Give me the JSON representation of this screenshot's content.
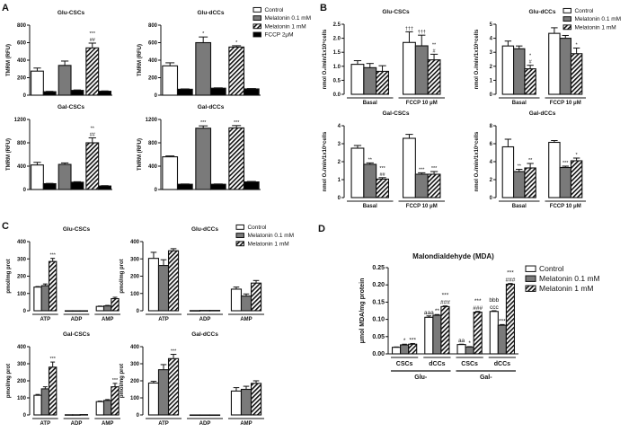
{
  "panel_labels": [
    "A",
    "B",
    "C",
    "D"
  ],
  "legends": {
    "A": [
      "Control",
      "Melatonin 0.1 mM",
      "Melatonin 1 mM",
      "FCCP 2μM"
    ],
    "B": [
      "Control",
      "Melatonin 0.1 mM",
      "Melatonin 1 mM"
    ],
    "C": [
      "Control",
      "Melatonin 0.1 mM",
      "Melatonin 1 mM"
    ],
    "D": [
      "Control",
      "Melatonin 0.1 mM",
      "Melatonin 1 mM"
    ]
  },
  "series_styles": {
    "Control": "#ffffff",
    "Melatonin 0.1 mM": "#777777",
    "Melatonin 1 mM": "hatched",
    "FCCP 2μM": "#000000"
  },
  "chart_data": [
    {
      "panel": "A",
      "type": "bar",
      "title": "Glu-CSCs",
      "ylabel": "TMRM (RFU)",
      "ylim": [
        0,
        800
      ],
      "yticks": [
        "0",
        "200",
        "400",
        "600",
        "800"
      ],
      "groups": [
        {
          "series": [
            0,
            3
          ],
          "values": [
            275,
            40
          ],
          "errors": [
            35,
            4
          ],
          "annotations": [
            [],
            []
          ]
        },
        {
          "series": [
            1,
            3
          ],
          "values": [
            340,
            55
          ],
          "errors": [
            50,
            5
          ],
          "annotations": [
            [],
            []
          ]
        },
        {
          "series": [
            2,
            3
          ],
          "values": [
            540,
            45
          ],
          "errors": [
            55,
            4
          ],
          "annotations": [
            [
              "***",
              "##"
            ],
            []
          ]
        }
      ]
    },
    {
      "panel": "A",
      "type": "bar",
      "title": "Glu-dCCs",
      "ylabel": "TMRM (RFU)",
      "ylim": [
        0,
        800
      ],
      "yticks": [
        "0",
        "200",
        "400",
        "600",
        "800"
      ],
      "groups": [
        {
          "series": [
            0,
            3
          ],
          "values": [
            335,
            68
          ],
          "errors": [
            35,
            4
          ],
          "annotations": [
            [],
            []
          ]
        },
        {
          "series": [
            1,
            3
          ],
          "values": [
            600,
            80
          ],
          "errors": [
            65,
            4
          ],
          "annotations": [
            [
              "*"
            ],
            []
          ]
        },
        {
          "series": [
            2,
            3
          ],
          "values": [
            550,
            72
          ],
          "errors": [
            15,
            4
          ],
          "annotations": [
            [
              "*"
            ],
            []
          ]
        }
      ]
    },
    {
      "panel": "A",
      "type": "bar",
      "title": "Gal-CSCs",
      "ylabel": "TMRM (RFU)",
      "ylim": [
        0,
        1200
      ],
      "yticks": [
        "0",
        "400",
        "800",
        "1200"
      ],
      "groups": [
        {
          "series": [
            0,
            3
          ],
          "values": [
            420,
            100
          ],
          "errors": [
            45,
            5
          ],
          "annotations": [
            [],
            []
          ]
        },
        {
          "series": [
            1,
            3
          ],
          "values": [
            430,
            125
          ],
          "errors": [
            25,
            8
          ],
          "annotations": [
            [],
            []
          ]
        },
        {
          "series": [
            2,
            3
          ],
          "values": [
            800,
            60
          ],
          "errors": [
            85,
            6
          ],
          "annotations": [
            [
              "**",
              "##"
            ],
            []
          ]
        }
      ]
    },
    {
      "panel": "A",
      "type": "bar",
      "title": "Gal-dCCs",
      "ylabel": "TMRM (RFU)",
      "ylim": [
        0,
        1200
      ],
      "yticks": [
        "0",
        "400",
        "800",
        "1200"
      ],
      "groups": [
        {
          "series": [
            0,
            3
          ],
          "values": [
            560,
            90
          ],
          "errors": [
            15,
            5
          ],
          "annotations": [
            [],
            []
          ]
        },
        {
          "series": [
            1,
            3
          ],
          "values": [
            1050,
            90
          ],
          "errors": [
            40,
            5
          ],
          "annotations": [
            [
              "***"
            ],
            []
          ]
        },
        {
          "series": [
            2,
            3
          ],
          "values": [
            1055,
            130
          ],
          "errors": [
            40,
            8
          ],
          "annotations": [
            [
              "***"
            ],
            []
          ]
        }
      ]
    },
    {
      "panel": "B",
      "type": "bar",
      "title": "Glu-CSCs",
      "ylabel": "nmol O₂/min/1x10⁶cells",
      "ylim": [
        0,
        2.5
      ],
      "yticks": [
        "0.0",
        "0.5",
        "1.0",
        "1.5",
        "2.0",
        "2.5"
      ],
      "groups": [
        {
          "label": "Basal",
          "values": [
            1.07,
            0.95,
            0.82
          ],
          "errors": [
            0.13,
            0.15,
            0.2
          ],
          "annotations": [
            [],
            [],
            []
          ]
        },
        {
          "label": "FCCP 10 μM",
          "values": [
            1.85,
            1.73,
            1.23
          ],
          "errors": [
            0.38,
            0.38,
            0.2
          ],
          "annotations": [
            [
              "†††"
            ],
            [
              "†††"
            ],
            [
              "**",
              "#"
            ]
          ]
        }
      ]
    },
    {
      "panel": "B",
      "type": "bar",
      "title": "Glu-dCCs",
      "ylabel": "nmol O₂/min/1x10⁶cells",
      "ylim": [
        0,
        5
      ],
      "yticks": [
        "0",
        "1",
        "2",
        "3",
        "4",
        "5"
      ],
      "groups": [
        {
          "label": "Basal",
          "values": [
            3.45,
            3.25,
            1.82
          ],
          "errors": [
            0.35,
            0.2,
            0.25
          ],
          "annotations": [
            [],
            [],
            [
              "*",
              "#"
            ]
          ]
        },
        {
          "label": "FCCP 10 μM",
          "values": [
            4.35,
            4.0,
            2.9
          ],
          "errors": [
            0.4,
            0.2,
            0.4
          ],
          "annotations": [
            [],
            [],
            [
              "*"
            ]
          ]
        }
      ]
    },
    {
      "panel": "B",
      "type": "bar",
      "title": "Gal-CSCs",
      "ylabel": "nmol O₂/min/1x10⁶cells",
      "ylim": [
        0,
        4
      ],
      "yticks": [
        "0",
        "1",
        "2",
        "3",
        "4"
      ],
      "groups": [
        {
          "label": "Basal",
          "values": [
            2.75,
            1.85,
            1.03
          ],
          "errors": [
            0.15,
            0.08,
            0.08
          ],
          "annotations": [
            [],
            [
              "**"
            ],
            [
              "***",
              "##"
            ]
          ]
        },
        {
          "label": "FCCP 10 μM",
          "values": [
            3.3,
            1.3,
            1.3
          ],
          "errors": [
            0.22,
            0.08,
            0.15
          ],
          "annotations": [
            [],
            [
              "***"
            ],
            [
              "***"
            ]
          ]
        }
      ]
    },
    {
      "panel": "B",
      "type": "bar",
      "title": "Gal-dCCs",
      "ylabel": "nmol O₂/min/1x10⁶cells",
      "ylim": [
        0,
        8
      ],
      "yticks": [
        "0",
        "2",
        "4",
        "6",
        "8"
      ],
      "groups": [
        {
          "label": "Basal",
          "values": [
            5.65,
            2.9,
            3.3
          ],
          "errors": [
            0.85,
            0.25,
            0.5
          ],
          "annotations": [
            [],
            [
              "**"
            ],
            [
              "**"
            ]
          ]
        },
        {
          "label": "FCCP 10 μM",
          "values": [
            6.15,
            3.35,
            4.1
          ],
          "errors": [
            0.2,
            0.15,
            0.3
          ],
          "annotations": [
            [],
            [
              "***"
            ],
            [
              "*"
            ]
          ]
        }
      ]
    },
    {
      "panel": "C",
      "type": "bar",
      "title": "Glu-CSCs",
      "ylabel": "pmol/mg prot",
      "ylim": [
        0,
        400
      ],
      "yticks": [
        "0",
        "100",
        "200",
        "300",
        "400"
      ],
      "groups": [
        {
          "label": "ATP",
          "values": [
            137,
            145,
            285
          ],
          "errors": [
            3,
            10,
            18
          ],
          "annotations": [
            [],
            [],
            [
              "***"
            ]
          ]
        },
        {
          "label": "ADP",
          "values": [
            0,
            0,
            0
          ],
          "errors": [
            0,
            0,
            0
          ],
          "annotations": [
            [],
            [],
            []
          ]
        },
        {
          "label": "AMP",
          "values": [
            25,
            28,
            70
          ],
          "errors": [
            2,
            3,
            8
          ],
          "annotations": [
            [],
            [],
            []
          ]
        }
      ]
    },
    {
      "panel": "C",
      "type": "bar",
      "title": "Glu-dCCs",
      "ylabel": "pmol/mg prot",
      "ylim": [
        0,
        400
      ],
      "yticks": [
        "0",
        "100",
        "200",
        "300",
        "400"
      ],
      "groups": [
        {
          "label": "ATP",
          "values": [
            303,
            262,
            347
          ],
          "errors": [
            35,
            33,
            12
          ],
          "annotations": [
            [],
            [],
            []
          ]
        },
        {
          "label": "ADP",
          "values": [
            1,
            2,
            2
          ],
          "errors": [
            0,
            0,
            0
          ],
          "annotations": [
            [],
            [],
            []
          ]
        },
        {
          "label": "AMP",
          "values": [
            125,
            85,
            160
          ],
          "errors": [
            12,
            12,
            15
          ],
          "annotations": [
            [],
            [],
            []
          ]
        }
      ]
    },
    {
      "panel": "C",
      "type": "bar",
      "title": "Gal-CSCs",
      "ylabel": "pmol/mg prot",
      "ylim": [
        0,
        400
      ],
      "yticks": [
        "0",
        "100",
        "200",
        "300",
        "400"
      ],
      "groups": [
        {
          "label": "ATP",
          "values": [
            115,
            153,
            280
          ],
          "errors": [
            5,
            12,
            30
          ],
          "annotations": [
            [],
            [],
            [
              "***"
            ]
          ]
        },
        {
          "label": "ADP",
          "values": [
            1,
            1,
            2
          ],
          "errors": [
            0,
            0,
            0
          ],
          "annotations": [
            [],
            [],
            []
          ]
        },
        {
          "label": "AMP",
          "values": [
            78,
            85,
            165
          ],
          "errors": [
            3,
            5,
            20
          ],
          "annotations": [
            [],
            [],
            [
              "***"
            ]
          ]
        }
      ]
    },
    {
      "panel": "C",
      "type": "bar",
      "title": "Gal-dCCs",
      "ylabel": "pmol/mg prot",
      "ylim": [
        0,
        400
      ],
      "yticks": [
        "0",
        "100",
        "200",
        "300",
        "400"
      ],
      "groups": [
        {
          "label": "ATP",
          "values": [
            187,
            265,
            330
          ],
          "errors": [
            10,
            30,
            25
          ],
          "annotations": [
            [],
            [],
            [
              "***"
            ]
          ]
        },
        {
          "label": "ADP",
          "values": [
            0,
            0,
            0
          ],
          "errors": [
            0,
            0,
            0
          ],
          "annotations": [
            [],
            [],
            []
          ]
        },
        {
          "label": "AMP",
          "values": [
            140,
            150,
            185
          ],
          "errors": [
            20,
            18,
            15
          ],
          "annotations": [
            [],
            [],
            []
          ]
        }
      ]
    },
    {
      "panel": "D",
      "type": "bar",
      "title": "Malondialdehyde (MDA)",
      "ylabel": "μmol MDA/mg protein",
      "ylim": [
        0,
        0.25
      ],
      "yticks": [
        "0.00",
        "0.05",
        "0.10",
        "0.15",
        "0.20",
        "0.25"
      ],
      "outer_categories": [
        "Glu-",
        "Gal-"
      ],
      "groups": [
        {
          "label": "CSCs",
          "values": [
            0.019,
            0.026,
            0.028
          ],
          "errors": [
            0.001,
            0.002,
            0.002
          ],
          "annotations": [
            [],
            [
              "*"
            ],
            [
              "***"
            ]
          ]
        },
        {
          "label": "dCCs",
          "values": [
            0.106,
            0.112,
            0.137
          ],
          "errors": [
            0.004,
            0.002,
            0.002
          ],
          "annotations": [
            [
              "aaa"
            ],
            [
              "**"
            ],
            [
              "***",
              "###"
            ]
          ]
        },
        {
          "label": "CSCs",
          "values": [
            0.027,
            0.02,
            0.121
          ],
          "errors": [
            0.001,
            0.001,
            0.002
          ],
          "annotations": [
            [
              "aa"
            ],
            [
              "*"
            ],
            [
              "***",
              "###"
            ]
          ]
        },
        {
          "label": "dCCs",
          "values": [
            0.123,
            0.083,
            0.202
          ],
          "errors": [
            0.002,
            0.002,
            0.002
          ],
          "annotations": [
            [
              "bbb",
              "ccc"
            ],
            [
              "***"
            ],
            [
              "***",
              "###"
            ]
          ]
        }
      ]
    }
  ]
}
